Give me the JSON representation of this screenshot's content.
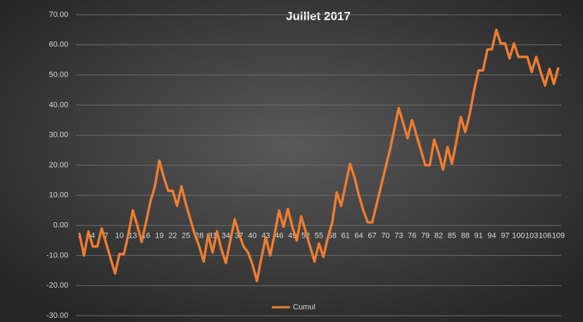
{
  "chart_data": {
    "type": "line",
    "title": "Juillet  2017",
    "categories": [
      "1",
      null,
      null,
      "4",
      null,
      null,
      "7",
      null,
      null,
      "10",
      null,
      null,
      "13",
      null,
      null,
      "16",
      null,
      null,
      "19",
      null,
      null,
      "22",
      null,
      null,
      "25",
      null,
      null,
      "28",
      null,
      null,
      "31",
      null,
      null,
      "34",
      null,
      null,
      "37",
      null,
      null,
      "40",
      null,
      null,
      "43",
      null,
      null,
      "46",
      null,
      null,
      "49",
      null,
      null,
      "52",
      null,
      null,
      "55",
      null,
      null,
      "58",
      null,
      null,
      "61",
      null,
      null,
      "64",
      null,
      null,
      "67",
      null,
      null,
      "70",
      null,
      null,
      "73",
      null,
      null,
      "76",
      null,
      null,
      "79",
      null,
      null,
      "82",
      null,
      null,
      "85",
      null,
      null,
      "88",
      null,
      null,
      "91",
      null,
      null,
      "94",
      null,
      null,
      "97",
      null,
      null,
      "100",
      null,
      null,
      "103",
      null,
      null,
      "106",
      null,
      null,
      "109"
    ],
    "series": [
      {
        "name": "Cumul",
        "color": "#ed7d31",
        "values": [
          -3,
          -10,
          -2,
          -7,
          -7,
          -1,
          -6,
          -11,
          -16,
          -9.5,
          -9.5,
          -3,
          5,
          0,
          -5.5,
          1,
          8,
          13,
          21.5,
          16,
          11.5,
          11.5,
          6.5,
          13,
          7,
          2,
          -3,
          -7,
          -12,
          -3,
          -9,
          -2,
          -8,
          -12.5,
          -5,
          2,
          -3,
          -7,
          -9,
          -13,
          -18.5,
          -11,
          -4,
          -10,
          -3,
          5,
          -0.5,
          5.5,
          -0.5,
          -5,
          3,
          -2,
          -7,
          -12,
          -6,
          -10.5,
          -4,
          1,
          11,
          6.5,
          13.5,
          20.5,
          16,
          10,
          5,
          1,
          1,
          7,
          13,
          19,
          25,
          32,
          39,
          34,
          29,
          35,
          30,
          25,
          20,
          20,
          28.5,
          24,
          18.5,
          26,
          20.5,
          28,
          36,
          31,
          37,
          45,
          51.5,
          51.5,
          58.5,
          58.5,
          65,
          60.5,
          60.5,
          55.5,
          60.5,
          56,
          56,
          56,
          51,
          56,
          51,
          46.5,
          52,
          47,
          52.5
        ]
      }
    ],
    "ylim": [
      -30,
      70
    ],
    "yticks": [
      {
        "value": -30,
        "label": "-30.00"
      },
      {
        "value": -20,
        "label": "-20.00"
      },
      {
        "value": -10,
        "label": "-10.00"
      },
      {
        "value": 0,
        "label": "0.00"
      },
      {
        "value": 10,
        "label": "10.00"
      },
      {
        "value": 20,
        "label": "20.00"
      },
      {
        "value": 30,
        "label": "30.00"
      },
      {
        "value": 40,
        "label": "40.00"
      },
      {
        "value": 50,
        "label": "50.00"
      },
      {
        "value": 60,
        "label": "60.00"
      },
      {
        "value": 70,
        "label": "70.00"
      }
    ],
    "grid": true,
    "legend": "bottom"
  }
}
